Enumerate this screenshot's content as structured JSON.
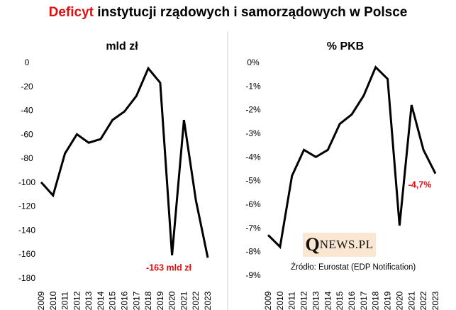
{
  "title": {
    "highlight": "Deficyt",
    "rest": " instytucji  rządowych  i samorządowych  w Polsce"
  },
  "colors": {
    "highlight": "#e01010",
    "line": "#000000",
    "divider": "#d0d0d0",
    "logo_bg": "#fbe6d2"
  },
  "logo": {
    "first": "Q",
    "rest": "NEWS.PL"
  },
  "source_note": "Źródło: Eurostat (EDP Notification)",
  "chart_data": [
    {
      "type": "line",
      "title": "mld zł",
      "x": [
        "2009",
        "2010",
        "2011",
        "2012",
        "2013",
        "2014",
        "2015",
        "2016",
        "2017",
        "2018",
        "2019",
        "2020",
        "2021",
        "2022",
        "2023"
      ],
      "series": [
        {
          "values": [
            -100,
            -111,
            -76,
            -60,
            -67,
            -64,
            -48,
            -41,
            -28,
            -5,
            -17,
            -161,
            -48,
            -115,
            -163
          ]
        }
      ],
      "ylim": [
        -180,
        0
      ],
      "yticks": [
        0,
        -20,
        -40,
        -60,
        -80,
        -100,
        -120,
        -140,
        -160,
        -180
      ],
      "ytick_labels": [
        "0",
        "-20",
        "-40",
        "-60",
        "-80",
        "-100",
        "-120",
        "-140",
        "-160",
        "-180"
      ],
      "grid": false,
      "annotation": {
        "text": "-163 mld zł",
        "x": "2023",
        "value": -163
      }
    },
    {
      "type": "line",
      "title": "% PKB",
      "x": [
        "2009",
        "2010",
        "2011",
        "2012",
        "2013",
        "2014",
        "2015",
        "2016",
        "2017",
        "2018",
        "2019",
        "2020",
        "2021",
        "2022",
        "2023"
      ],
      "series": [
        {
          "values": [
            -7.3,
            -7.8,
            -4.8,
            -3.7,
            -4.0,
            -3.7,
            -2.6,
            -2.2,
            -1.4,
            -0.2,
            -0.7,
            -6.9,
            -1.8,
            -3.7,
            -4.7
          ]
        }
      ],
      "ylim": [
        -9,
        0
      ],
      "yticks": [
        0,
        -1,
        -2,
        -3,
        -4,
        -5,
        -6,
        -7,
        -8,
        -9
      ],
      "ytick_labels": [
        "0%",
        "-1%",
        "-2%",
        "-3%",
        "-4%",
        "-5%",
        "-6%",
        "-7%",
        "-8%",
        "-9%"
      ],
      "grid": false,
      "annotation": {
        "text": "-4,7%",
        "x": "2023",
        "value": -4.7
      }
    }
  ]
}
